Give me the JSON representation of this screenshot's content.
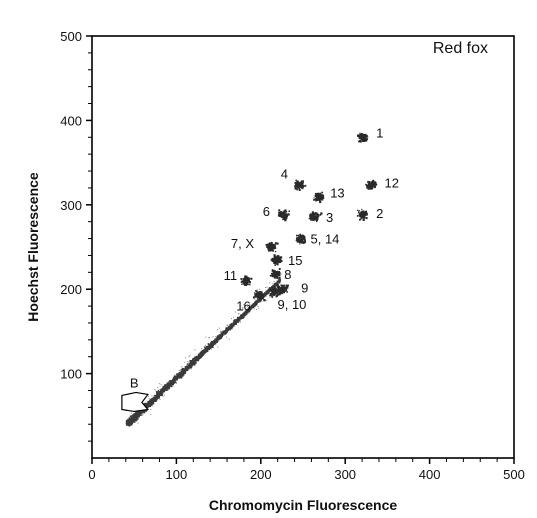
{
  "chart_data": {
    "type": "scatter",
    "title": "Red fox",
    "xlabel": "Chromomycin Fluorescence",
    "ylabel": "Hoechst Fluorescence",
    "xlim": [
      0,
      500
    ],
    "ylim": [
      0,
      500
    ],
    "xticks": [
      0,
      100,
      200,
      300,
      400,
      500
    ],
    "yticks": [
      100,
      200,
      300,
      400,
      500
    ],
    "grid": false,
    "diagonal_band": {
      "from": [
        42,
        42
      ],
      "to": [
        222,
        212
      ]
    },
    "clusters": [
      {
        "label": "1",
        "x": 320,
        "y": 381
      },
      {
        "label": "12",
        "x": 330,
        "y": 324
      },
      {
        "label": "2",
        "x": 320,
        "y": 289
      },
      {
        "label": "4",
        "x": 245,
        "y": 324
      },
      {
        "label": "13",
        "x": 268,
        "y": 311
      },
      {
        "label": "6",
        "x": 226,
        "y": 289
      },
      {
        "label": "3",
        "x": 263,
        "y": 287
      },
      {
        "label": "7, X",
        "x": 212,
        "y": 251
      },
      {
        "label": "5, 14",
        "x": 247,
        "y": 260
      },
      {
        "label": "15",
        "x": 218,
        "y": 236
      },
      {
        "label": "11",
        "x": 182,
        "y": 211
      },
      {
        "label": "8",
        "x": 216,
        "y": 219
      },
      {
        "label": "9",
        "x": 224,
        "y": 201
      },
      {
        "label": "16",
        "x": 197,
        "y": 194
      },
      {
        "label": "9, 10",
        "x": 215,
        "y": 198
      }
    ],
    "annotations": [
      {
        "text": "B",
        "x": 52,
        "y": 67,
        "kind": "outline-region"
      }
    ]
  }
}
